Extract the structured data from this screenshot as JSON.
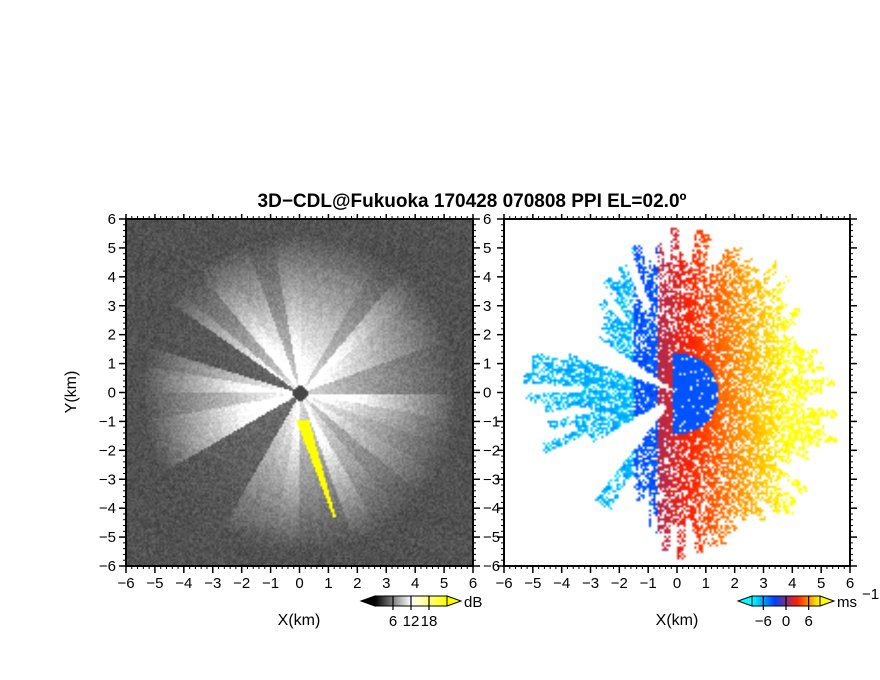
{
  "chart_data": [
    {
      "type": "heatmap",
      "panel": "reflectivity",
      "title": "3D−CDL@Fukuoka 170428 070808 PPI EL=02.0º",
      "xlabel": "X(km)",
      "ylabel": "Y(km)",
      "xlim": [
        -6,
        6
      ],
      "ylim": [
        -6,
        6
      ],
      "xticks": [
        "−6",
        "−5",
        "−4",
        "−3",
        "−2",
        "−1",
        "0",
        "1",
        "2",
        "3",
        "4",
        "5",
        "6"
      ],
      "yticks": [
        "−6",
        "−5",
        "−4",
        "−3",
        "−2",
        "−1",
        "0",
        "1",
        "2",
        "3",
        "4",
        "5",
        "6"
      ],
      "colorbar": {
        "unit": "dB",
        "ticks": [
          "6",
          "12",
          "18"
        ],
        "range": [
          0,
          24
        ]
      },
      "colormap": [
        "#000000",
        "#ffffff",
        "#ffff00"
      ]
    },
    {
      "type": "heatmap",
      "panel": "doppler-velocity",
      "xlabel": "X(km)",
      "xlim": [
        -6,
        6
      ],
      "ylim": [
        -6,
        6
      ],
      "xticks": [
        "−6",
        "−5",
        "−4",
        "−3",
        "−2",
        "−1",
        "0",
        "1",
        "2",
        "3",
        "4",
        "5",
        "6"
      ],
      "yticks": [
        "−6",
        "−5",
        "−4",
        "−3",
        "−2",
        "−1",
        "0",
        "1",
        "2",
        "3",
        "4",
        "5",
        "6"
      ],
      "colorbar": {
        "unit": "ms",
        "unit_sup": "−1",
        "ticks": [
          "−6",
          "0",
          "6"
        ],
        "range": [
          -9,
          9
        ]
      },
      "colormap": [
        "#00ffff",
        "#0040ff",
        "#ff2000",
        "#ffff00"
      ]
    }
  ]
}
